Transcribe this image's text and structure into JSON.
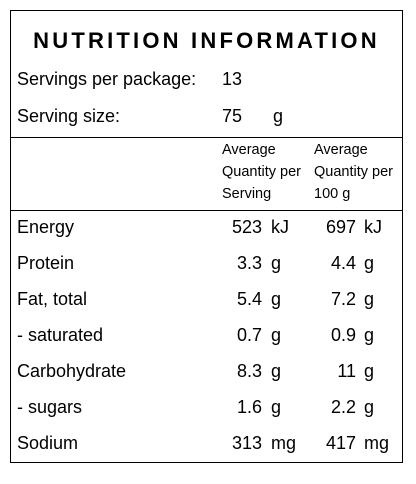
{
  "title": "NUTRITION INFORMATION",
  "servings_label": "Servings per package:",
  "servings_value": "13",
  "serving_size_label": "Serving size:",
  "serving_size_value": "75",
  "serving_size_unit": "g",
  "headers": {
    "per_serving": [
      "Average",
      "Quantity per",
      "Serving"
    ],
    "per_100g": [
      "Average",
      "Quantity per",
      "100 g"
    ]
  },
  "rows": [
    {
      "name": "Energy",
      "serving": "523",
      "serving_unit": "kJ",
      "per100": "697",
      "per100_unit": "kJ"
    },
    {
      "name": "Protein",
      "serving": "3.3",
      "serving_unit": "g",
      "per100": "4.4",
      "per100_unit": "g"
    },
    {
      "name": "Fat, total",
      "serving": "5.4",
      "serving_unit": "g",
      "per100": "7.2",
      "per100_unit": "g"
    },
    {
      "name": "- saturated",
      "serving": "0.7",
      "serving_unit": "g",
      "per100": "0.9",
      "per100_unit": "g"
    },
    {
      "name": "Carbohydrate",
      "serving": "8.3",
      "serving_unit": "g",
      "per100": "11",
      "per100_unit": "g"
    },
    {
      "name": "- sugars",
      "serving": "1.6",
      "serving_unit": "g",
      "per100": "2.2",
      "per100_unit": "g"
    },
    {
      "name": "Sodium",
      "serving": "313",
      "serving_unit": "mg",
      "per100": "417",
      "per100_unit": "mg"
    }
  ]
}
